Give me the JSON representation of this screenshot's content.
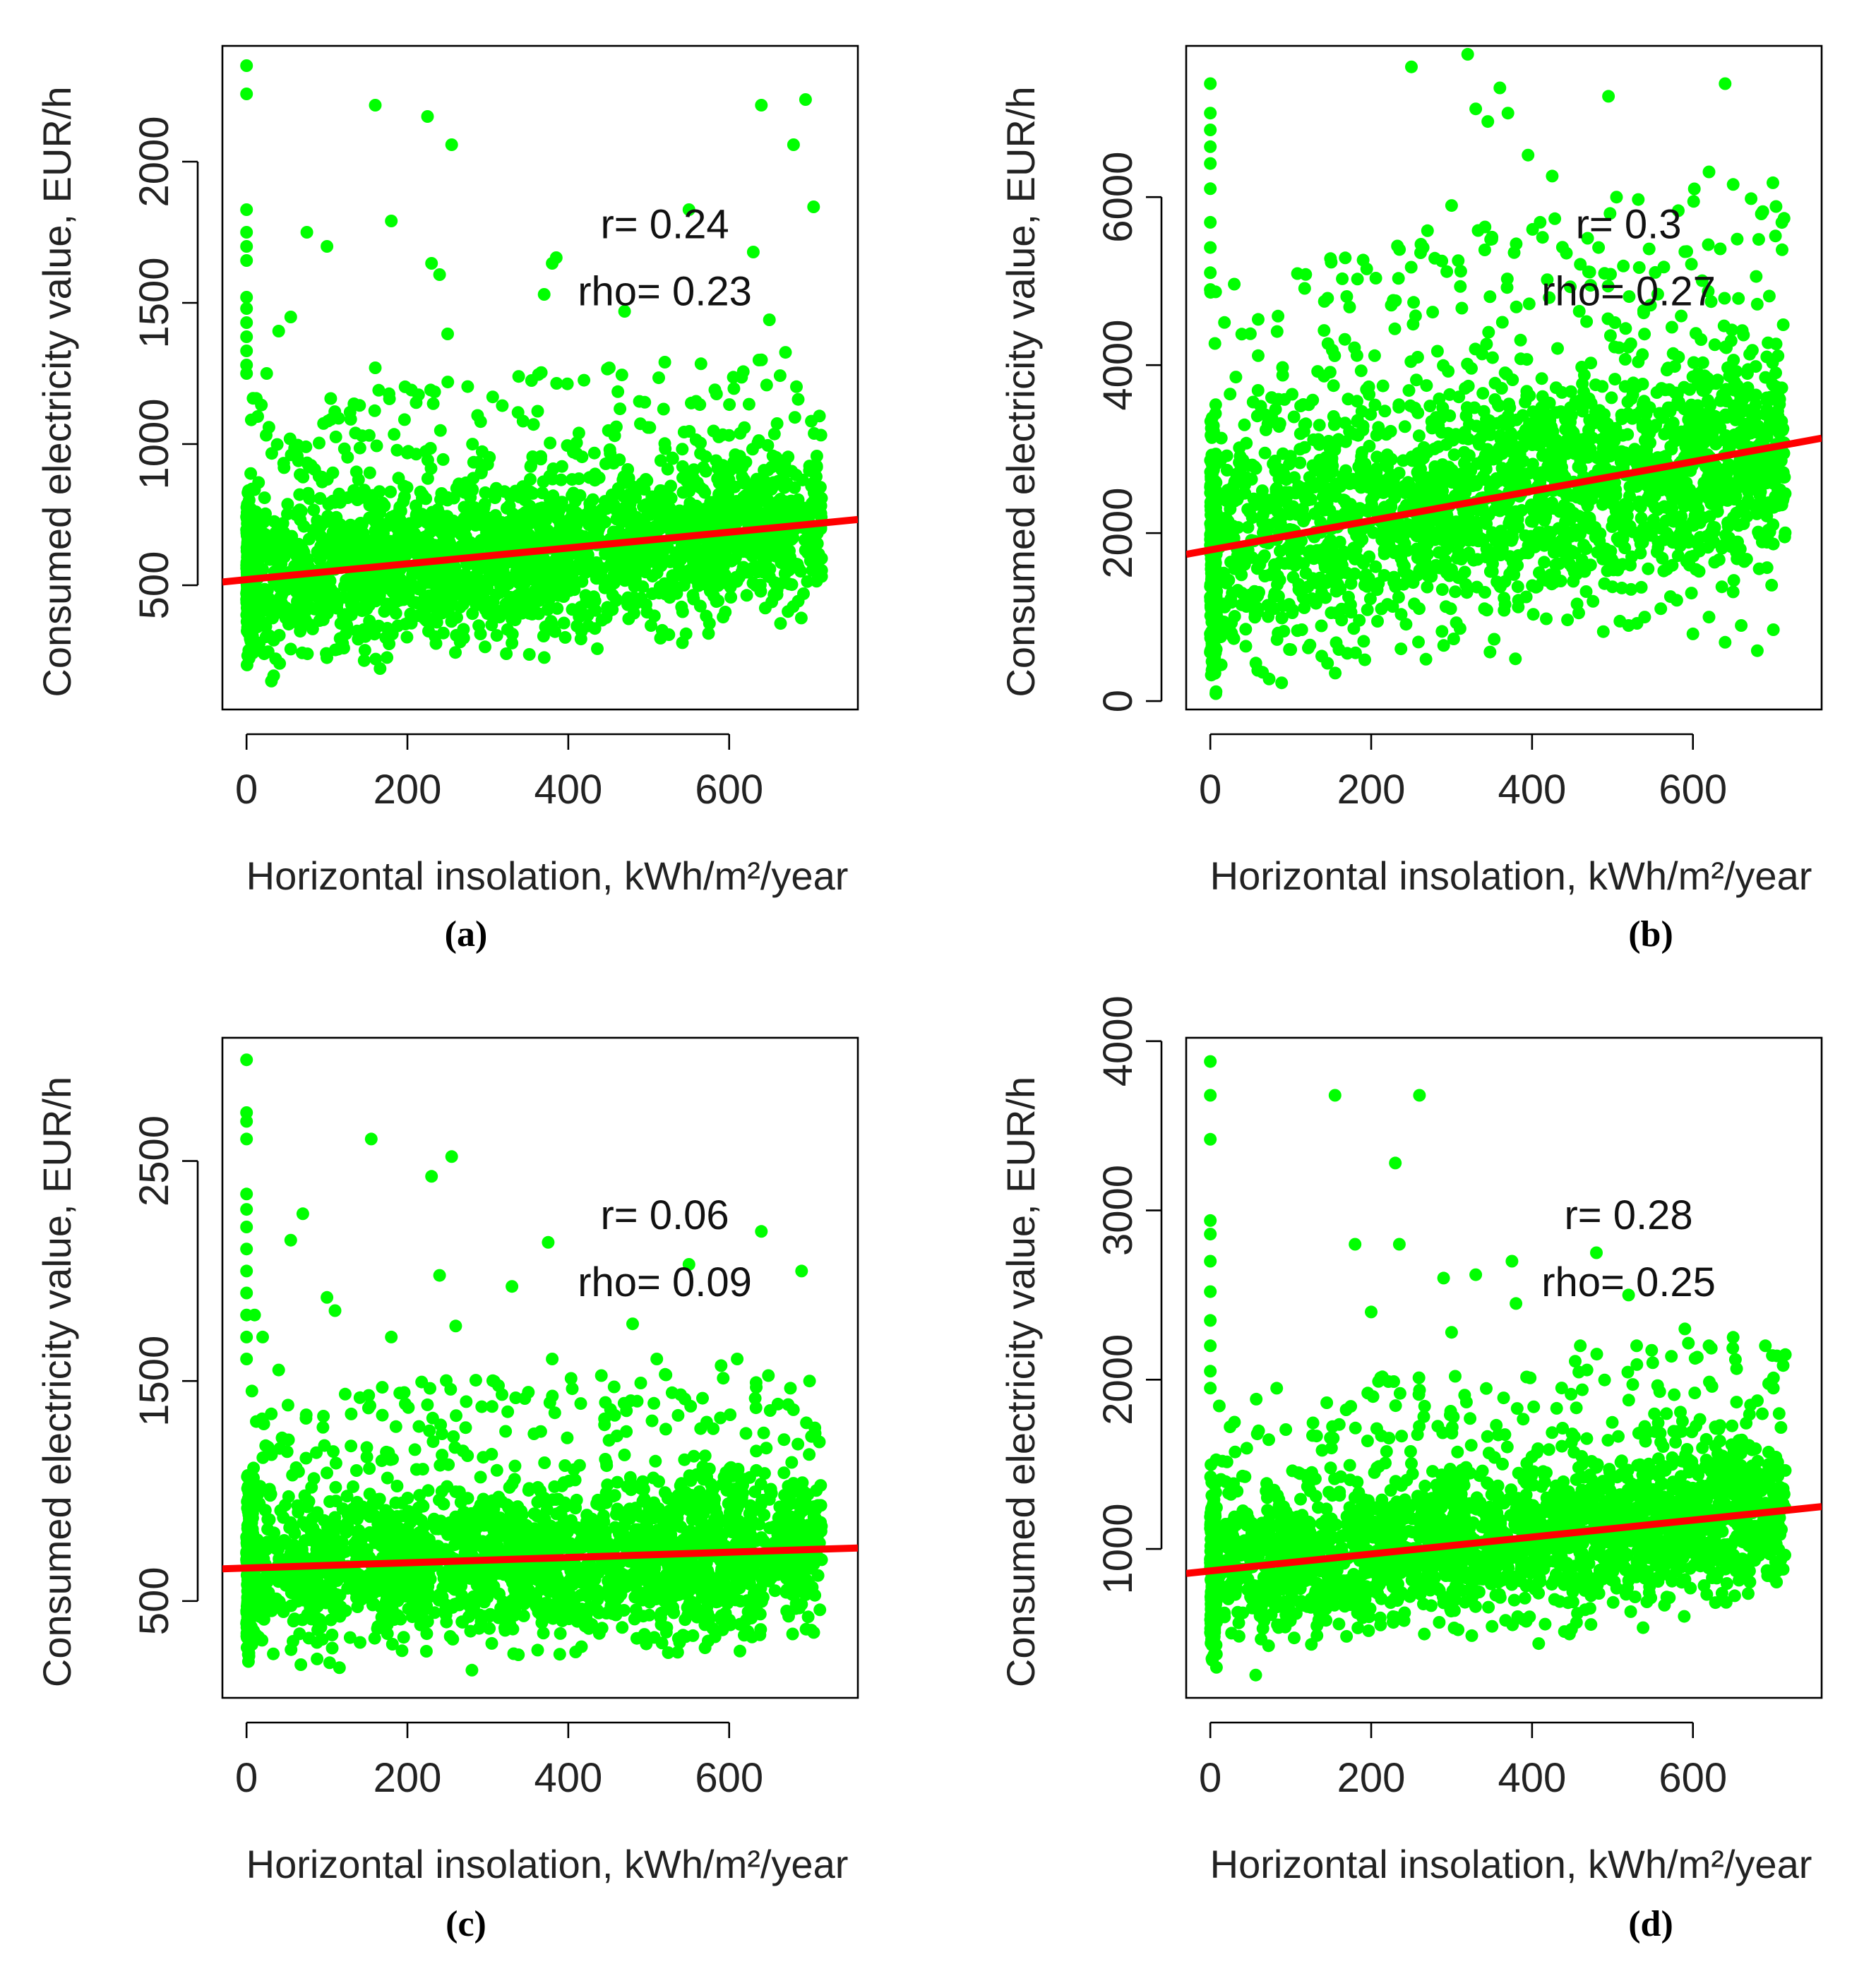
{
  "chart_data": [
    {
      "id": "a",
      "type": "scatter",
      "panel_label": "(a)",
      "xlabel": "Horizontal insolation, kWh/m²/year",
      "ylabel": "Consumed electricity value, EUR/h",
      "xlim": [
        -30,
        760
      ],
      "ylim": [
        60,
        2410
      ],
      "xticks": [
        0,
        200,
        400,
        600
      ],
      "yticks": [
        500,
        1000,
        1500,
        2000
      ],
      "fit_line": {
        "intercept": 520,
        "slope": 0.28
      },
      "annotations": [
        "r= 0.24",
        "rho= 0.23"
      ],
      "cloud": {
        "base": 520,
        "slope": 0.28,
        "spread": 260,
        "max_val": 1200
      },
      "outliers": [
        [
          0,
          2340
        ],
        [
          0,
          2240
        ],
        [
          0,
          1830
        ],
        [
          0,
          1750
        ],
        [
          0,
          1700
        ],
        [
          0,
          1650
        ],
        [
          0,
          1520
        ],
        [
          0,
          1480
        ],
        [
          0,
          1430
        ],
        [
          0,
          1380
        ],
        [
          0,
          1330
        ],
        [
          0,
          1280
        ],
        [
          0,
          1250
        ],
        [
          25,
          1250
        ],
        [
          40,
          1400
        ],
        [
          55,
          1450
        ],
        [
          75,
          1750
        ],
        [
          100,
          1700
        ],
        [
          160,
          2200
        ],
        [
          160,
          1270
        ],
        [
          180,
          1790
        ],
        [
          225,
          2160
        ],
        [
          230,
          1640
        ],
        [
          240,
          1600
        ],
        [
          255,
          2060
        ],
        [
          250,
          1390
        ],
        [
          370,
          1530
        ],
        [
          385,
          1660
        ],
        [
          380,
          1640
        ],
        [
          470,
          1470
        ],
        [
          520,
          1290
        ],
        [
          550,
          1830
        ],
        [
          630,
          1680
        ],
        [
          640,
          2200
        ],
        [
          650,
          1440
        ],
        [
          680,
          2060
        ],
        [
          695,
          2220
        ],
        [
          705,
          1840
        ]
      ]
    },
    {
      "id": "b",
      "type": "scatter",
      "panel_label": "(b)",
      "xlabel": "Horizontal insolation, kWh/m²/year",
      "ylabel": "Consumed electricity value, EUR/h",
      "xlim": [
        -30,
        760
      ],
      "ylim": [
        -100,
        7800
      ],
      "xticks": [
        0,
        200,
        400,
        600
      ],
      "yticks": [
        0,
        2000,
        4000,
        6000
      ],
      "fit_line": {
        "intercept": 1800,
        "slope": 1.75
      },
      "annotations": [
        "r= 0.3",
        "rho= 0.27"
      ],
      "cloud": {
        "base": 1800,
        "slope": 1.75,
        "spread": 1300,
        "max_val": 4600
      },
      "outliers": [
        [
          0,
          7350
        ],
        [
          0,
          7000
        ],
        [
          0,
          6800
        ],
        [
          0,
          6600
        ],
        [
          0,
          6400
        ],
        [
          0,
          6100
        ],
        [
          0,
          5700
        ],
        [
          0,
          5400
        ],
        [
          0,
          5100
        ],
        [
          0,
          4900
        ],
        [
          250,
          7550
        ],
        [
          320,
          7700
        ],
        [
          330,
          7050
        ],
        [
          345,
          6900
        ],
        [
          360,
          7300
        ],
        [
          370,
          7000
        ],
        [
          395,
          6500
        ],
        [
          425,
          6250
        ],
        [
          495,
          7200
        ],
        [
          505,
          6000
        ],
        [
          590,
          5350
        ],
        [
          620,
          6300
        ],
        [
          640,
          7350
        ],
        [
          650,
          6150
        ],
        [
          655,
          5500
        ],
        [
          685,
          5800
        ],
        [
          190,
          5250
        ],
        [
          270,
          5600
        ],
        [
          300,
          5900
        ],
        [
          350,
          5500
        ],
        [
          410,
          5700
        ],
        [
          460,
          5200
        ],
        [
          175,
          1400
        ],
        [
          520,
          900
        ],
        [
          560,
          1100
        ],
        [
          600,
          800
        ],
        [
          640,
          700
        ],
        [
          660,
          900
        ],
        [
          680,
          600
        ],
        [
          700,
          850
        ],
        [
          540,
          1000
        ],
        [
          580,
          1200
        ],
        [
          620,
          1000
        ],
        [
          650,
          1300
        ]
      ]
    },
    {
      "id": "c",
      "type": "scatter",
      "panel_label": "(c)",
      "xlabel": "Horizontal insolation, kWh/m²/year",
      "ylabel": "Consumed electricity value, EUR/h",
      "xlim": [
        -30,
        760
      ],
      "ylim": [
        60,
        3060
      ],
      "xticks": [
        0,
        200,
        400,
        600
      ],
      "yticks": [
        500,
        1500,
        2500
      ],
      "fit_line": {
        "intercept": 650,
        "slope": 0.12
      },
      "annotations": [
        "r= 0.06",
        "rho= 0.09"
      ],
      "cloud": {
        "base": 650,
        "slope": 0.12,
        "spread": 330,
        "max_val": 1300
      },
      "outliers": [
        [
          0,
          2960
        ],
        [
          0,
          2720
        ],
        [
          0,
          2680
        ],
        [
          0,
          2600
        ],
        [
          0,
          2350
        ],
        [
          0,
          2280
        ],
        [
          0,
          2200
        ],
        [
          0,
          2100
        ],
        [
          0,
          2000
        ],
        [
          0,
          1900
        ],
        [
          0,
          1800
        ],
        [
          0,
          1700
        ],
        [
          0,
          1600
        ],
        [
          10,
          1800
        ],
        [
          20,
          1700
        ],
        [
          40,
          1550
        ],
        [
          55,
          2140
        ],
        [
          70,
          2260
        ],
        [
          100,
          1880
        ],
        [
          110,
          1820
        ],
        [
          155,
          2600
        ],
        [
          180,
          1700
        ],
        [
          230,
          2430
        ],
        [
          240,
          1980
        ],
        [
          255,
          2520
        ],
        [
          260,
          1750
        ],
        [
          330,
          1930
        ],
        [
          375,
          2130
        ],
        [
          380,
          1600
        ],
        [
          480,
          1760
        ],
        [
          510,
          1600
        ],
        [
          550,
          2030
        ],
        [
          590,
          1570
        ],
        [
          610,
          1600
        ],
        [
          640,
          2180
        ],
        [
          690,
          2000
        ],
        [
          700,
          1500
        ]
      ]
    },
    {
      "id": "d",
      "type": "scatter",
      "panel_label": "(d)",
      "xlabel": "Horizontal insolation, kWh/m²/year",
      "ylabel": "Consumed electricity value, EUR/h",
      "xlim": [
        -30,
        760
      ],
      "ylim": [
        120,
        4020
      ],
      "xticks": [
        0,
        200,
        400,
        600
      ],
      "yticks": [
        1000,
        2000,
        3000,
        4000
      ],
      "fit_line": {
        "intercept": 870,
        "slope": 0.5
      },
      "annotations": [
        "r= 0.28",
        "rho= 0.25"
      ],
      "cloud": {
        "base": 870,
        "slope": 0.5,
        "spread": 420,
        "max_val": 1850
      },
      "outliers": [
        [
          0,
          3880
        ],
        [
          0,
          3680
        ],
        [
          0,
          3420
        ],
        [
          0,
          2940
        ],
        [
          0,
          2860
        ],
        [
          0,
          2700
        ],
        [
          0,
          2520
        ],
        [
          0,
          2350
        ],
        [
          0,
          2200
        ],
        [
          0,
          2050
        ],
        [
          0,
          1950
        ],
        [
          155,
          3680
        ],
        [
          180,
          2800
        ],
        [
          200,
          2400
        ],
        [
          230,
          3280
        ],
        [
          235,
          2800
        ],
        [
          260,
          3680
        ],
        [
          290,
          2600
        ],
        [
          300,
          2280
        ],
        [
          330,
          2620
        ],
        [
          375,
          2700
        ],
        [
          380,
          2450
        ],
        [
          460,
          2200
        ],
        [
          480,
          2750
        ],
        [
          520,
          2500
        ],
        [
          530,
          2200
        ],
        [
          550,
          2100
        ],
        [
          590,
          2300
        ],
        [
          620,
          2200
        ],
        [
          650,
          2250
        ],
        [
          690,
          2200
        ],
        [
          700,
          1950
        ]
      ]
    }
  ]
}
